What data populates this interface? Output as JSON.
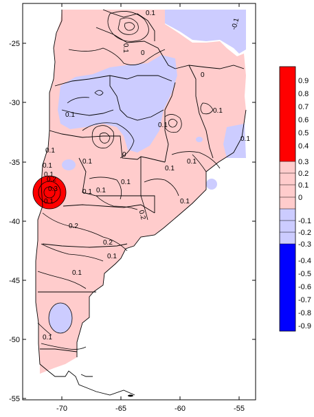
{
  "map": {
    "x_ticks": [
      "-70",
      "-65",
      "-60",
      "-55"
    ],
    "y_ticks": [
      "-25",
      "-30",
      "-35",
      "-40",
      "-45",
      "-50",
      "-55"
    ],
    "contour_labels": [
      "0.1",
      "-0.1",
      "0.1",
      "0.1",
      "0.1",
      "0",
      "0.1",
      "0.1",
      "0.1",
      "0",
      "0.1",
      "0.2",
      "0.1",
      "0.1",
      "0.1",
      "0.2",
      "0.2",
      "0.3",
      "0.1",
      "0.1",
      "0.1",
      "0.2",
      "0.1",
      "0.1",
      "0.1",
      "0.1",
      "0.1",
      "0",
      "0.1"
    ]
  },
  "legend": {
    "labels": [
      "0.9",
      "0.8",
      "0.7",
      "0.6",
      "0.5",
      "0.4",
      "0.3",
      "0.2",
      "0.1",
      "0",
      "-0.1",
      "-0.2",
      "-0.3",
      "-0.4",
      "-0.5",
      "-0.6",
      "-0.7",
      "-0.8",
      "-0.9"
    ],
    "colors": {
      "strong_positive": "#ff0000",
      "weak_positive": "#ffcccc",
      "weak_negative": "#ccccff",
      "strong_negative": "#0000ff"
    }
  }
}
